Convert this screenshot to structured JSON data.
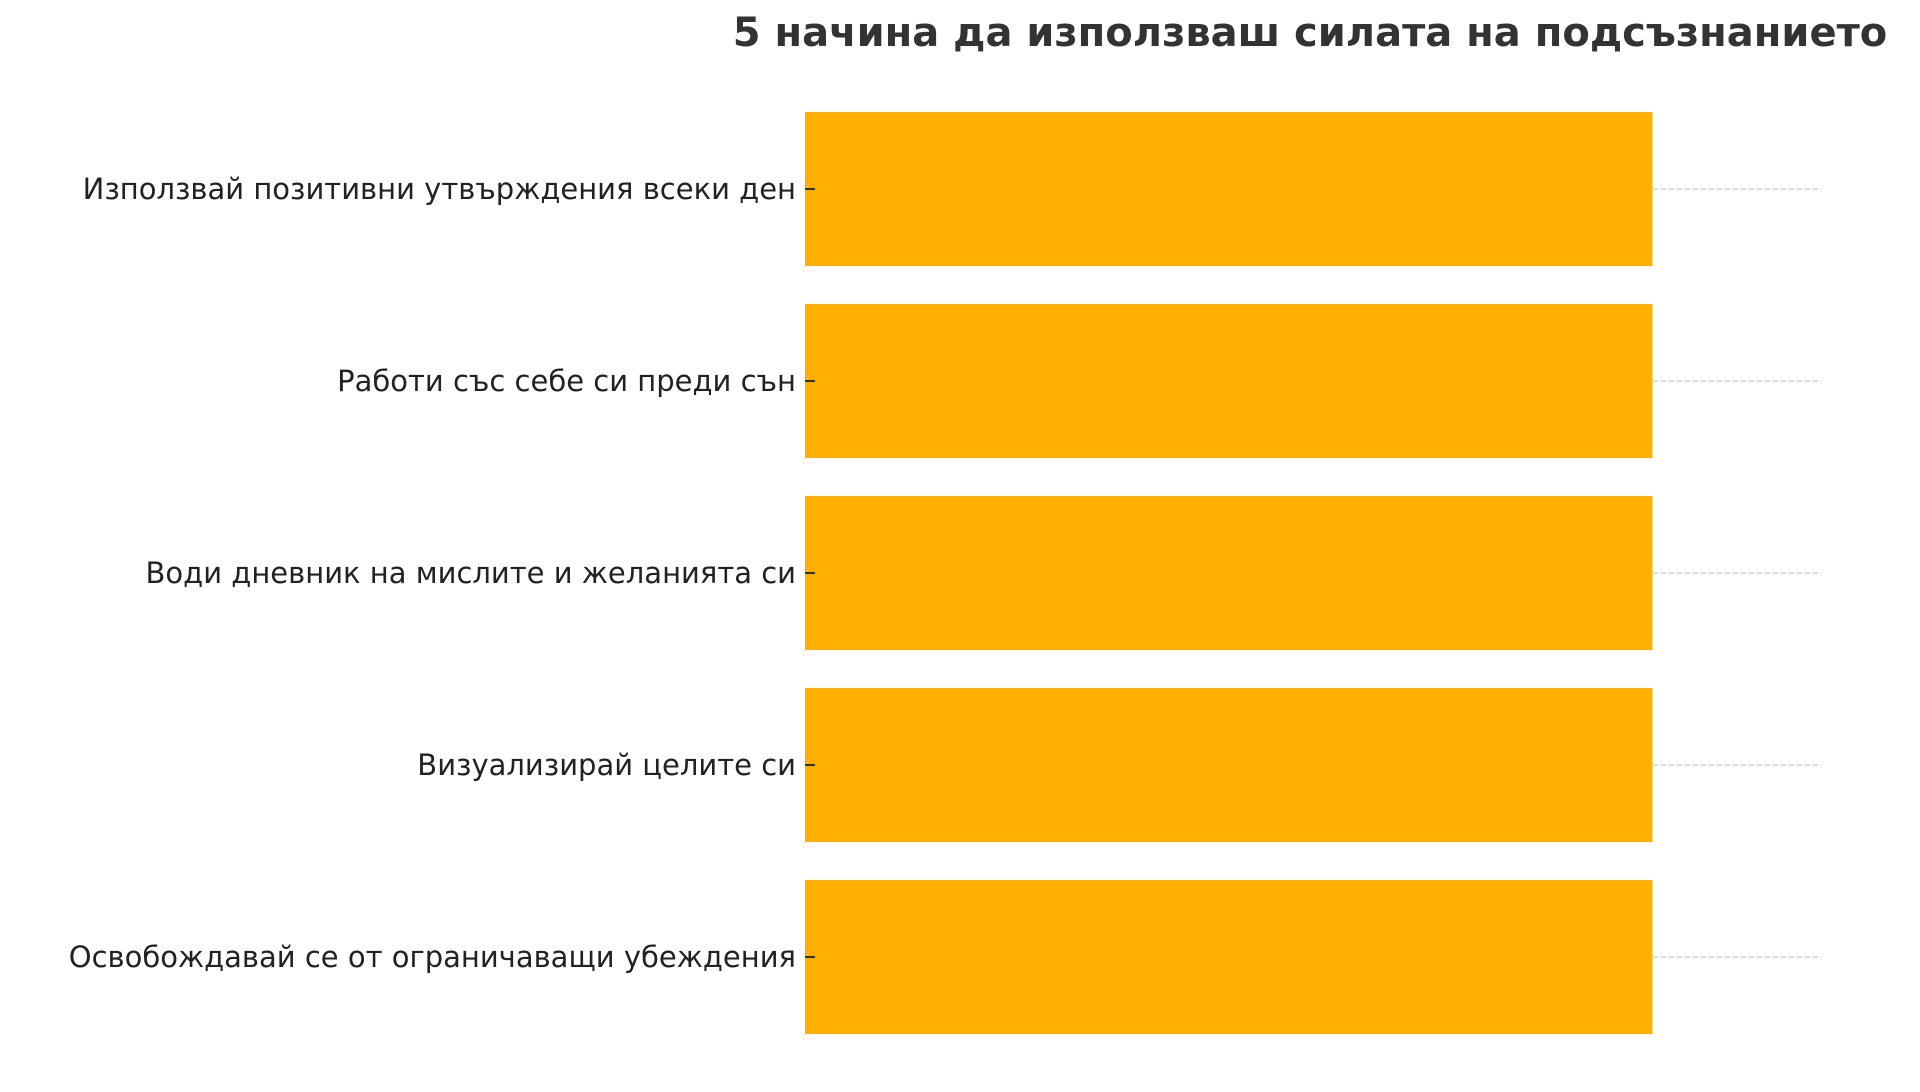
{
  "chart_data": {
    "type": "bar",
    "orientation": "horizontal",
    "title": "5 начина да използваш силата на подсъзнанието",
    "categories": [
      "Използвай позитивни утвърждения всеки ден",
      "Работи със себе си преди сън",
      "Води дневник на мислите и желанията си",
      "Визуализирай целите си",
      "Освобождавай се от ограничаващи убеждения"
    ],
    "values": [
      1,
      1,
      1,
      1,
      1
    ],
    "xlim": [
      0,
      1.2
    ],
    "grid": true,
    "bar_color": "#FFB000",
    "grid_color": "#C8C8C8",
    "label_color": "#222222",
    "title_color": "#333333"
  }
}
